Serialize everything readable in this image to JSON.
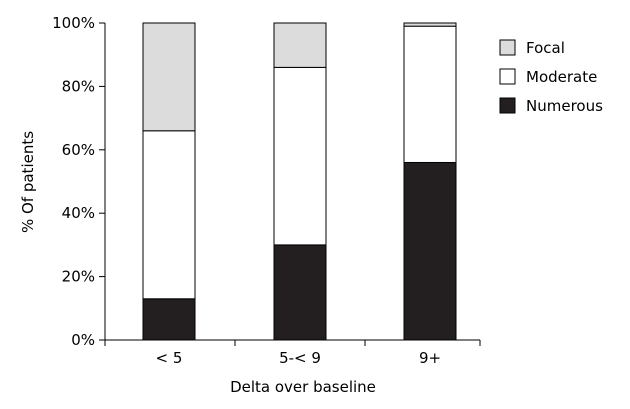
{
  "chart_data": {
    "type": "bar",
    "stacked": true,
    "categories": [
      "< 5",
      "5-< 9",
      "9+"
    ],
    "series": [
      {
        "name": "Numerous",
        "values": [
          13,
          30,
          56
        ],
        "color": "#231f20"
      },
      {
        "name": "Moderate",
        "values": [
          53,
          56,
          43
        ],
        "color": "#ffffff"
      },
      {
        "name": "Focal",
        "values": [
          34,
          14,
          1
        ],
        "color": "#dcdcdc"
      }
    ],
    "xlabel": "Delta over baseline",
    "ylabel": "% Of patients",
    "ylim": [
      0,
      100
    ],
    "yticks": [
      "0%",
      "20%",
      "40%",
      "60%",
      "80%",
      "100%"
    ],
    "ytick_values": [
      0,
      20,
      40,
      60,
      80,
      100
    ],
    "legend": {
      "placement": "top-right",
      "order": [
        "Focal",
        "Moderate",
        "Numerous"
      ]
    },
    "grid": false
  }
}
